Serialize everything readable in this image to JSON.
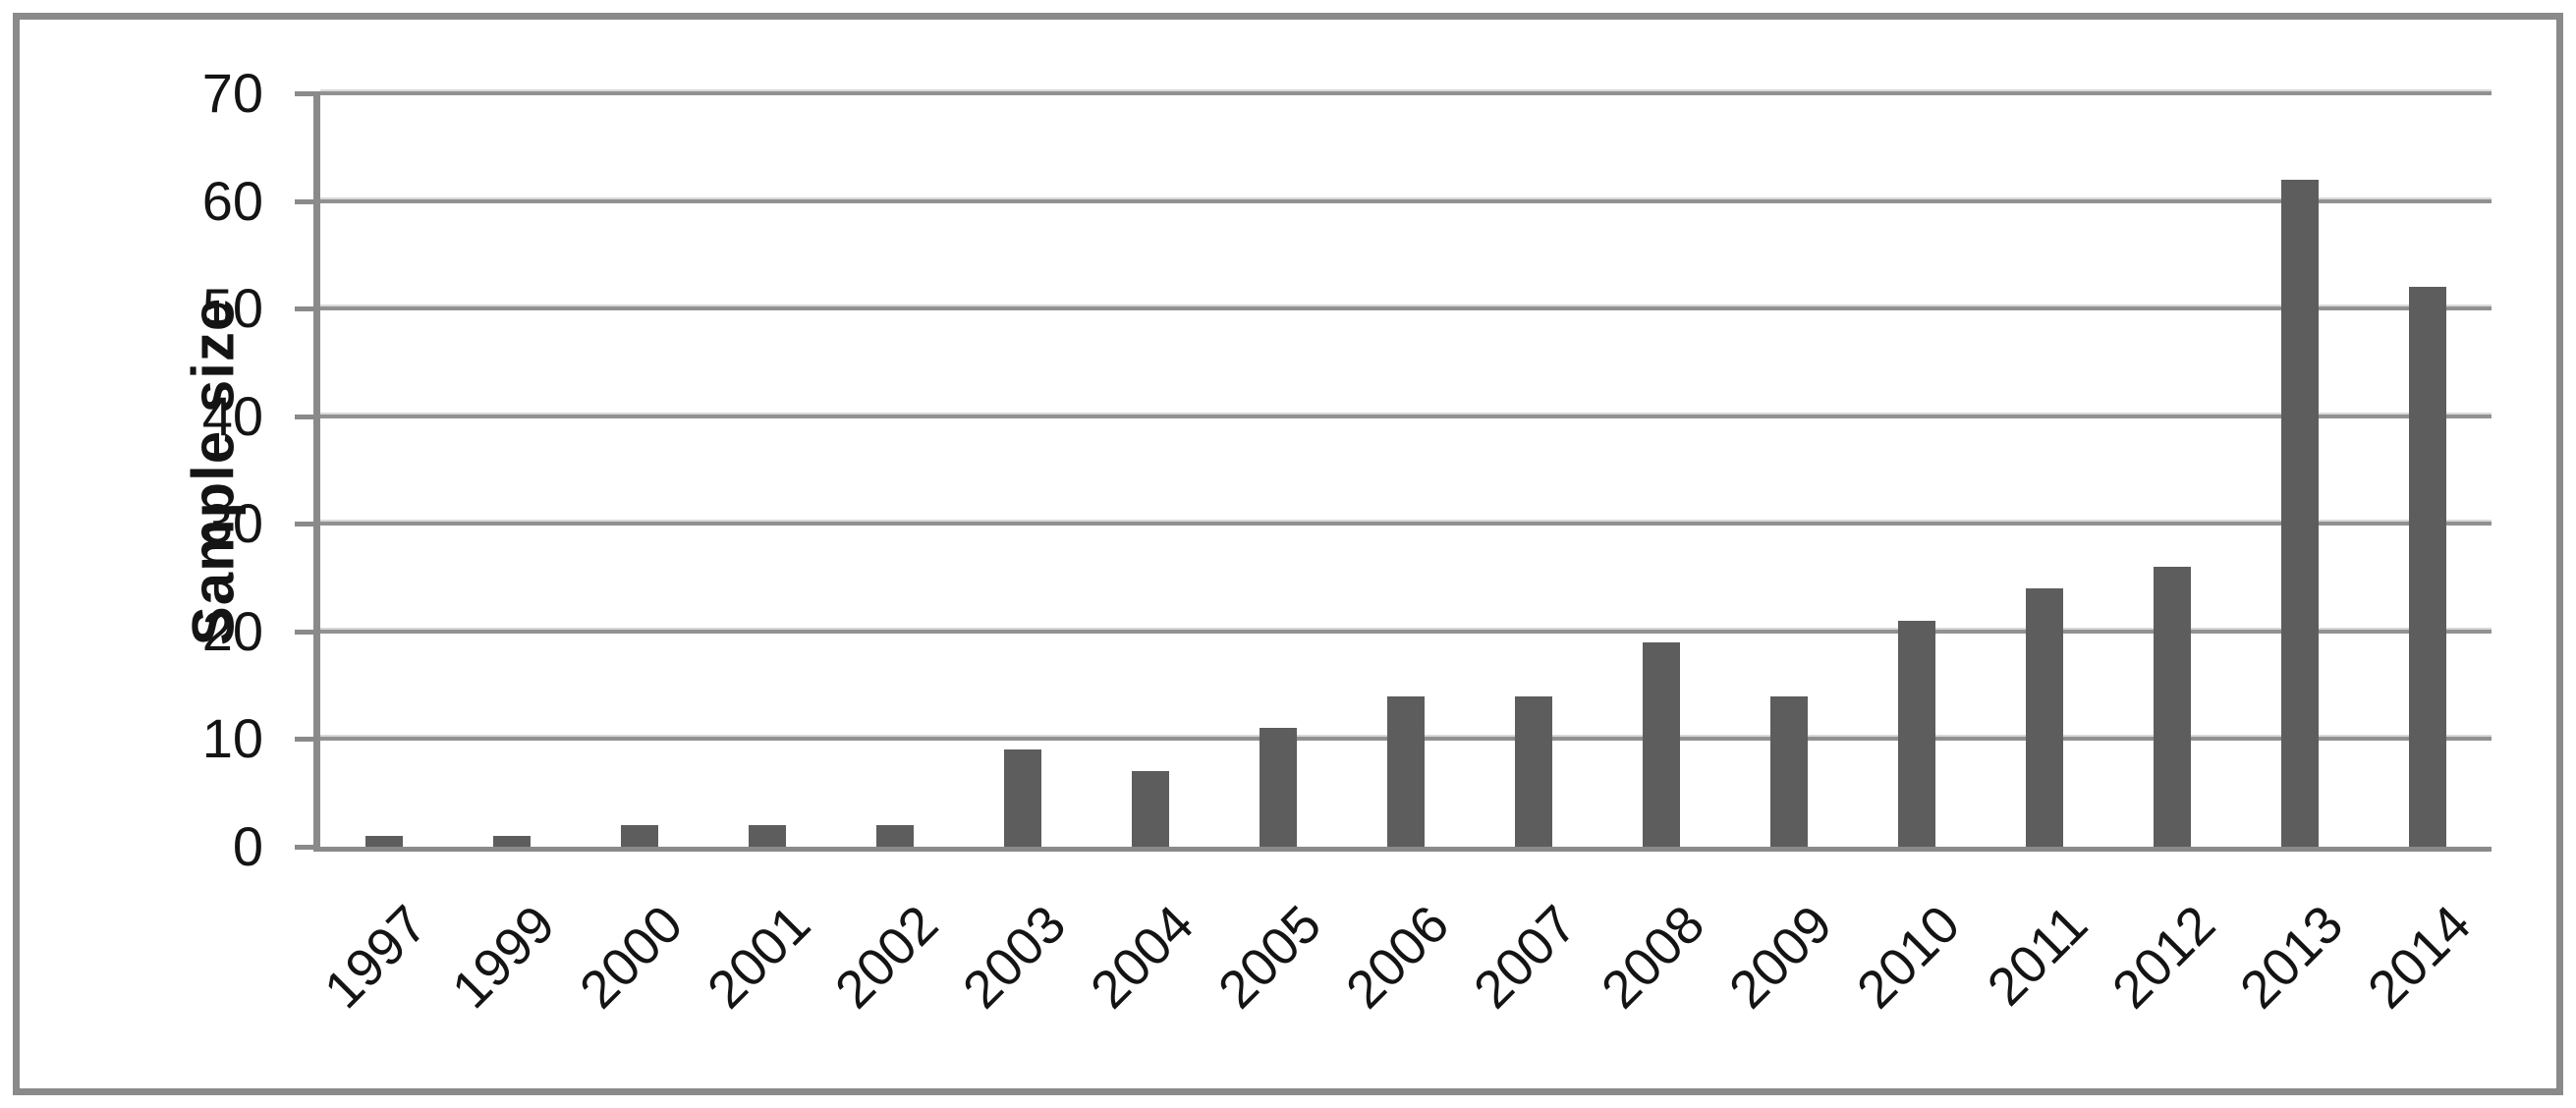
{
  "figure": {
    "background": "#ffffff",
    "border_color": "#8a8a8a"
  },
  "chart_data": {
    "type": "bar",
    "title": "",
    "ylabel": "Sample size",
    "xlabel": "",
    "categories": [
      "1997",
      "1999",
      "2000",
      "2001",
      "2002",
      "2003",
      "2004",
      "2005",
      "2006",
      "2007",
      "2008",
      "2009",
      "2010",
      "2011",
      "2012",
      "2013",
      "2014"
    ],
    "values": [
      1,
      1,
      2,
      2,
      2,
      9,
      7,
      11,
      14,
      14,
      19,
      14,
      21,
      24,
      26,
      62,
      52
    ],
    "ylim": [
      0,
      70
    ],
    "yticks": [
      0,
      10,
      20,
      30,
      40,
      50,
      60,
      70
    ],
    "grid": true,
    "legend": false,
    "x_tick_rotation_deg": 45,
    "bar_color": "#5d5d5d",
    "gridline_color": "#919191",
    "axis_color": "#8a8a8a",
    "text_color": "#141414"
  }
}
